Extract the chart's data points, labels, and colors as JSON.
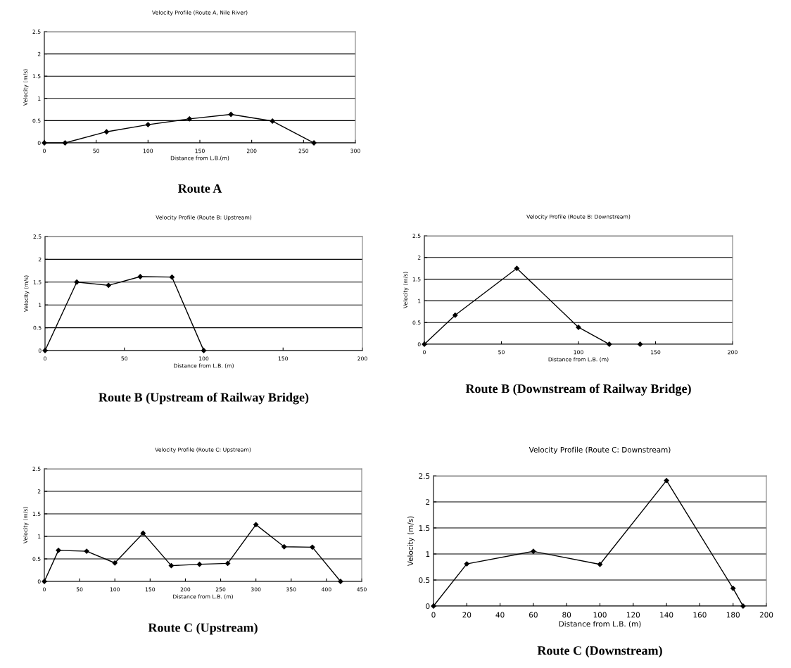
{
  "chart_data": [
    {
      "type": "line",
      "title": "Velocity Profile (Route A, Nile River)",
      "xlabel": "Distance from L.B.(m)",
      "ylabel": "Velocity (m/s)",
      "annotations": [
        "Route A"
      ],
      "series": [
        {
          "color": "#000000",
          "x": [
            0,
            20,
            60,
            100,
            140,
            180,
            220,
            260
          ],
          "values": [
            0,
            0,
            0.25,
            0.41,
            0.54,
            0.64,
            0.49,
            0
          ]
        }
      ],
      "xlim": [
        0,
        300
      ],
      "xticks": [
        0,
        50,
        100,
        150,
        200,
        250,
        300
      ],
      "ylim": [
        0,
        2.5
      ],
      "yticks": [
        0,
        0.5,
        1,
        1.5,
        2,
        2.5
      ],
      "grid": "y",
      "marker": "diamond",
      "line_style": "solid",
      "legend": false
    },
    {
      "type": "line",
      "title": "Velocity Profile (Route B: Upstream)",
      "xlabel": "Distance from L.B. (m)",
      "ylabel": "Velocity (m/s)",
      "annotations": [
        "Route B (Upstream of Railway Bridge)"
      ],
      "series": [
        {
          "color": "#000000",
          "x": [
            0,
            20,
            40,
            60,
            80,
            100
          ],
          "values": [
            0,
            1.5,
            1.43,
            1.62,
            1.61,
            0
          ]
        }
      ],
      "xlim": [
        0,
        200
      ],
      "xticks": [
        0,
        50,
        100,
        150,
        200
      ],
      "ylim": [
        0,
        2.5
      ],
      "yticks": [
        0,
        0.5,
        1,
        1.5,
        2,
        2.5
      ],
      "grid": "y",
      "marker": "diamond",
      "line_style": "solid",
      "legend": false
    },
    {
      "type": "line",
      "title": "Velocity Profile (Route B: Downstream)",
      "xlabel": "Distance from L.B. (m)",
      "ylabel": "Velocity (m/s)",
      "annotations": [
        "Route B (Downstream of Railway Bridge)"
      ],
      "series": [
        {
          "color": "#000000",
          "x": [
            0,
            20,
            60,
            100,
            120
          ],
          "values": [
            0,
            0.67,
            1.75,
            0.39,
            0
          ]
        },
        {
          "type": "scatter",
          "color": "#000000",
          "x": [
            140
          ],
          "values": [
            0
          ]
        }
      ],
      "xlim": [
        0,
        200
      ],
      "xticks": [
        0,
        50,
        100,
        150,
        200
      ],
      "ylim": [
        0,
        2.5
      ],
      "yticks": [
        0,
        0.5,
        1,
        1.5,
        2,
        2.5
      ],
      "grid": "y",
      "marker": "diamond",
      "line_style": "solid",
      "legend": false
    },
    {
      "type": "line",
      "title": "Velocity Profile (Route C: Upstream)",
      "xlabel": "Distance from L.B. (m)",
      "ylabel": "Velocity (m/s)",
      "annotations": [
        "Route C (Upstream)"
      ],
      "series": [
        {
          "color": "#000000",
          "x": [
            0,
            20,
            60,
            100,
            140,
            180,
            220,
            260,
            300,
            340,
            380,
            420
          ],
          "values": [
            0,
            0.69,
            0.67,
            0.41,
            1.07,
            0.35,
            0.38,
            0.4,
            1.26,
            0.77,
            0.76,
            0
          ]
        }
      ],
      "xlim": [
        0,
        450
      ],
      "xticks": [
        0,
        50,
        100,
        150,
        200,
        250,
        300,
        350,
        400,
        450
      ],
      "ylim": [
        0,
        2.5
      ],
      "yticks": [
        0,
        0.5,
        1,
        1.5,
        2,
        2.5
      ],
      "grid": "y",
      "marker": "diamond",
      "line_style": "solid",
      "legend": false
    },
    {
      "type": "line",
      "title": "Velocity Profile (Route C: Downstream)",
      "xlabel": "Distance from L.B. (m)",
      "ylabel": "Velocity (m/s)",
      "annotations": [
        "Route C (Downstream)"
      ],
      "series": [
        {
          "color": "#000000",
          "x": [
            0,
            20,
            60,
            100,
            140,
            180,
            186
          ],
          "values": [
            0,
            0.81,
            1.05,
            0.8,
            2.41,
            0.34,
            0
          ]
        }
      ],
      "xlim": [
        0,
        200
      ],
      "xticks": [
        0,
        20,
        40,
        60,
        80,
        100,
        120,
        140,
        160,
        180,
        200
      ],
      "ylim": [
        0,
        2.5
      ],
      "yticks": [
        0,
        0.5,
        1,
        1.5,
        2,
        2.5
      ],
      "grid": "y",
      "marker": "diamond",
      "line_style": "solid",
      "legend": false
    }
  ]
}
